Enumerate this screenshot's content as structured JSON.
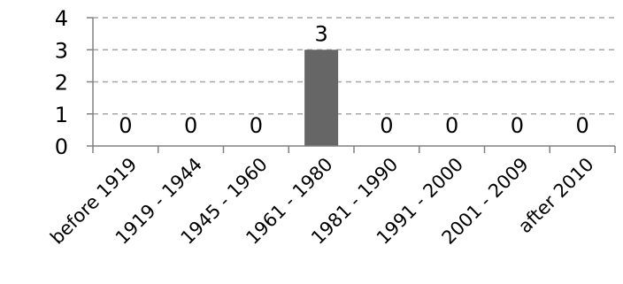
{
  "chart_data": {
    "type": "bar",
    "categories": [
      "before 1919",
      "1919 - 1944",
      "1945 - 1960",
      "1961 - 1980",
      "1981 - 1990",
      "1991 - 2000",
      "2001 - 2009",
      "after 2010"
    ],
    "values": [
      0,
      0,
      0,
      3,
      0,
      0,
      0,
      0
    ],
    "data_labels": [
      "0",
      "0",
      "0",
      "3",
      "0",
      "0",
      "0",
      "0"
    ],
    "y_ticks": [
      "0",
      "1",
      "2",
      "3",
      "4"
    ],
    "ylim": [
      0,
      4
    ],
    "grid": true,
    "bar_color": "#666666",
    "grid_color": "#a6a6a6",
    "axis_color": "#808080",
    "title": "",
    "xlabel": "",
    "ylabel": ""
  }
}
